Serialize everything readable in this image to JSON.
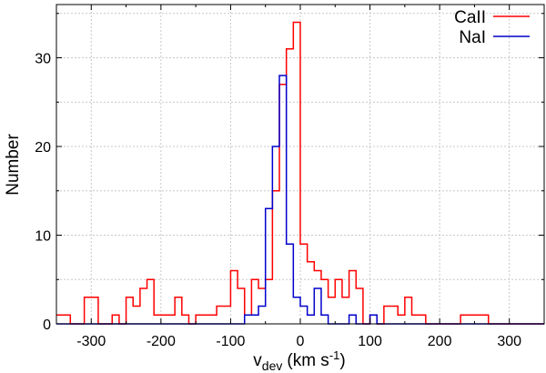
{
  "chart_data": {
    "type": "histogram",
    "xlabel_main": "v",
    "xlabel_sub": "dev",
    "xlabel_unit": "(km s",
    "xlabel_exp": "-1",
    "xlabel_close": ")",
    "ylabel": "Number",
    "xlim": [
      -350,
      350
    ],
    "ylim": [
      0,
      36
    ],
    "xticks": [
      -300,
      -200,
      -100,
      0,
      100,
      200,
      300
    ],
    "yticks": [
      0,
      10,
      20,
      30
    ],
    "grid": true,
    "legend_position": "top-right",
    "bin_edges": [
      -350,
      -330,
      -310,
      -290,
      -280,
      -270,
      -260,
      -250,
      -240,
      -230,
      -220,
      -210,
      -200,
      -190,
      -180,
      -170,
      -160,
      -150,
      -140,
      -130,
      -120,
      -110,
      -100,
      -90,
      -80,
      -70,
      -60,
      -50,
      -40,
      -30,
      -20,
      -10,
      0,
      10,
      20,
      30,
      40,
      50,
      60,
      70,
      80,
      90,
      100,
      110,
      120,
      130,
      140,
      150,
      160,
      170,
      180,
      190,
      200,
      210,
      220,
      230,
      240,
      250,
      260,
      270,
      280,
      290,
      300,
      350
    ],
    "series": [
      {
        "name": "CaII",
        "color": "#ff0000",
        "counts": [
          1,
          0,
          3,
          0,
          0,
          1,
          0,
          3,
          2,
          4,
          5,
          1,
          1,
          1,
          3,
          1,
          0,
          1,
          1,
          1,
          2,
          2,
          6,
          4,
          1,
          5,
          4,
          5,
          15,
          27,
          31,
          34,
          9,
          7,
          6,
          5,
          3,
          5,
          3,
          6,
          4,
          0,
          1,
          0,
          2,
          2,
          1,
          3,
          1,
          1,
          0,
          0,
          0,
          0,
          0,
          1,
          1,
          1,
          1,
          0,
          0,
          0,
          0
        ]
      },
      {
        "name": "NaI",
        "color": "#0000cc",
        "counts": [
          0,
          0,
          0,
          0,
          0,
          0,
          0,
          0,
          0,
          0,
          0,
          0,
          0,
          0,
          0,
          0,
          0,
          0,
          0,
          0,
          0,
          0,
          0,
          0,
          1,
          1,
          2,
          13,
          20,
          28,
          9,
          3,
          2,
          1,
          4,
          1,
          0,
          0,
          0,
          1,
          0,
          0,
          1,
          0,
          0,
          0,
          0,
          0,
          0,
          0,
          0,
          0,
          0,
          0,
          0,
          0,
          0,
          0,
          0,
          0,
          0,
          0,
          0
        ]
      }
    ]
  }
}
